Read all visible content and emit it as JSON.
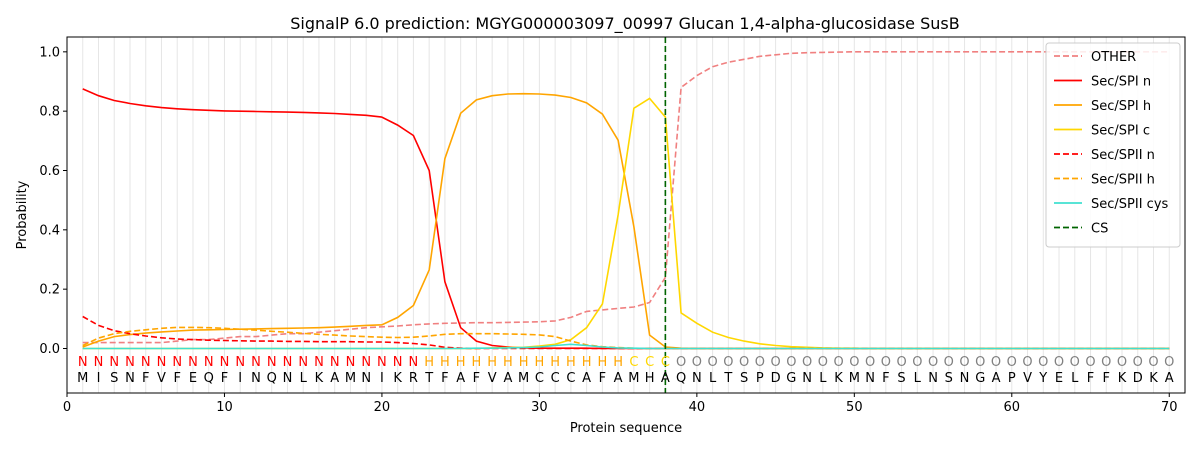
{
  "chart_data": {
    "type": "line",
    "title": "SignalP 6.0 prediction: MGYG000003097_00997 Glucan 1,4-alpha-glucosidase SusB",
    "xlabel": "Protein sequence",
    "ylabel": "Probability",
    "xlim": [
      0,
      71
    ],
    "ylim": [
      -0.15,
      1.05
    ],
    "xticks": [
      0,
      10,
      20,
      30,
      40,
      50,
      60,
      70
    ],
    "yticks": [
      0.0,
      0.2,
      0.4,
      0.6,
      0.8,
      1.0
    ],
    "grid": "vertical lines at each residue",
    "legend_position": "top-right",
    "sequence": [
      "M",
      "I",
      "S",
      "N",
      "F",
      "V",
      "F",
      "E",
      "Q",
      "F",
      "I",
      "N",
      "Q",
      "N",
      "L",
      "K",
      "A",
      "M",
      "N",
      "I",
      "K",
      "R",
      "T",
      "F",
      "A",
      "F",
      "V",
      "A",
      "M",
      "C",
      "C",
      "C",
      "A",
      "F",
      "A",
      "M",
      "H",
      "A",
      "Q",
      "N",
      "L",
      "T",
      "S",
      "P",
      "D",
      "G",
      "N",
      "L",
      "K",
      "M",
      "N",
      "F",
      "S",
      "L",
      "N",
      "S",
      "N",
      "G",
      "A",
      "P",
      "V",
      "Y",
      "E",
      "L",
      "F",
      "F",
      "K",
      "D",
      "K",
      "A"
    ],
    "labels": [
      "N",
      "N",
      "N",
      "N",
      "N",
      "N",
      "N",
      "N",
      "N",
      "N",
      "N",
      "N",
      "N",
      "N",
      "N",
      "N",
      "N",
      "N",
      "N",
      "N",
      "N",
      "N",
      "H",
      "H",
      "H",
      "H",
      "H",
      "H",
      "H",
      "H",
      "H",
      "H",
      "H",
      "H",
      "H",
      "C",
      "C",
      "C",
      "O",
      "O",
      "O",
      "O",
      "O",
      "O",
      "O",
      "O",
      "O",
      "O",
      "O",
      "O",
      "O",
      "O",
      "O",
      "O",
      "O",
      "O",
      "O",
      "O",
      "O",
      "O",
      "O",
      "O",
      "O",
      "O",
      "O",
      "O",
      "O",
      "O",
      "O",
      "O"
    ],
    "label_colors": {
      "N": "#ff0000",
      "H": "#ffa500",
      "C": "#ffd700",
      "O": "#808080"
    },
    "cs_position": 38,
    "series": [
      {
        "name": "OTHER",
        "color": "#f08080",
        "dash": "dashed",
        "values": [
          0.02,
          0.02,
          0.02,
          0.02,
          0.02,
          0.02,
          0.025,
          0.03,
          0.03,
          0.035,
          0.04,
          0.04,
          0.045,
          0.05,
          0.05,
          0.055,
          0.06,
          0.065,
          0.07,
          0.073,
          0.076,
          0.08,
          0.083,
          0.085,
          0.086,
          0.087,
          0.087,
          0.088,
          0.089,
          0.09,
          0.093,
          0.105,
          0.125,
          0.13,
          0.135,
          0.14,
          0.155,
          0.24,
          0.88,
          0.92,
          0.95,
          0.965,
          0.975,
          0.985,
          0.99,
          0.995,
          0.997,
          0.998,
          0.999,
          1.0,
          1.0,
          1.0,
          1.0,
          1.0,
          1.0,
          1.0,
          1.0,
          1.0,
          1.0,
          1.0,
          1.0,
          1.0,
          1.0,
          1.0,
          1.0,
          1.0,
          1.0,
          1.0,
          1.0,
          1.0
        ]
      },
      {
        "name": "Sec/SPI n",
        "color": "#ff0000",
        "dash": "solid",
        "values": [
          0.875,
          0.852,
          0.836,
          0.826,
          0.818,
          0.812,
          0.808,
          0.805,
          0.803,
          0.801,
          0.8,
          0.799,
          0.798,
          0.797,
          0.796,
          0.794,
          0.792,
          0.789,
          0.786,
          0.78,
          0.753,
          0.718,
          0.6,
          0.225,
          0.07,
          0.025,
          0.01,
          0.005,
          0.002,
          0.001,
          0.001,
          0.001,
          0.001,
          0.0,
          0.0,
          0.0,
          0.0,
          0.0,
          0.0,
          0.0,
          0.0,
          0.0,
          0.0,
          0.0,
          0.0,
          0.0,
          0.0,
          0.0,
          0.0,
          0.0,
          0.0,
          0.0,
          0.0,
          0.0,
          0.0,
          0.0,
          0.0,
          0.0,
          0.0,
          0.0,
          0.0,
          0.0,
          0.0,
          0.0,
          0.0,
          0.0,
          0.0,
          0.0,
          0.0,
          0.0
        ]
      },
      {
        "name": "Sec/SPI h",
        "color": "#ffa500",
        "dash": "solid",
        "values": [
          0.005,
          0.025,
          0.04,
          0.047,
          0.052,
          0.056,
          0.059,
          0.062,
          0.063,
          0.064,
          0.065,
          0.066,
          0.067,
          0.068,
          0.069,
          0.07,
          0.072,
          0.075,
          0.078,
          0.08,
          0.105,
          0.145,
          0.265,
          0.64,
          0.793,
          0.838,
          0.852,
          0.858,
          0.859,
          0.858,
          0.854,
          0.846,
          0.828,
          0.79,
          0.702,
          0.41,
          0.045,
          0.005,
          0.001,
          0.0,
          0.0,
          0.0,
          0.0,
          0.0,
          0.0,
          0.0,
          0.0,
          0.0,
          0.0,
          0.0,
          0.0,
          0.0,
          0.0,
          0.0,
          0.0,
          0.0,
          0.0,
          0.0,
          0.0,
          0.0,
          0.0,
          0.0,
          0.0,
          0.0,
          0.0,
          0.0,
          0.0,
          0.0,
          0.0,
          0.0
        ]
      },
      {
        "name": "Sec/SPI c",
        "color": "#ffd700",
        "dash": "solid",
        "values": [
          0.0,
          0.0,
          0.0,
          0.0,
          0.0,
          0.0,
          0.0,
          0.0,
          0.0,
          0.0,
          0.0,
          0.0,
          0.0,
          0.0,
          0.0,
          0.0,
          0.0,
          0.0,
          0.0,
          0.0,
          0.0,
          0.0,
          0.0,
          0.0,
          0.0,
          0.0,
          0.002,
          0.003,
          0.004,
          0.008,
          0.014,
          0.03,
          0.07,
          0.15,
          0.45,
          0.81,
          0.843,
          0.78,
          0.12,
          0.085,
          0.055,
          0.037,
          0.025,
          0.016,
          0.01,
          0.006,
          0.004,
          0.002,
          0.001,
          0.001,
          0.0,
          0.0,
          0.0,
          0.0,
          0.0,
          0.0,
          0.0,
          0.0,
          0.0,
          0.0,
          0.0,
          0.0,
          0.0,
          0.0,
          0.0,
          0.0,
          0.0,
          0.0,
          0.0,
          0.0
        ]
      },
      {
        "name": "Sec/SPII n",
        "color": "#ff0000",
        "dash": "dashed",
        "values": [
          0.108,
          0.078,
          0.06,
          0.05,
          0.042,
          0.036,
          0.032,
          0.03,
          0.028,
          0.027,
          0.026,
          0.025,
          0.025,
          0.024,
          0.024,
          0.023,
          0.023,
          0.023,
          0.022,
          0.022,
          0.02,
          0.017,
          0.012,
          0.004,
          0.001,
          0.0,
          0.0,
          0.0,
          0.0,
          0.0,
          0.0,
          0.0,
          0.0,
          0.0,
          0.0,
          0.0,
          0.0,
          0.0,
          0.0,
          0.0,
          0.0,
          0.0,
          0.0,
          0.0,
          0.0,
          0.0,
          0.0,
          0.0,
          0.0,
          0.0,
          0.0,
          0.0,
          0.0,
          0.0,
          0.0,
          0.0,
          0.0,
          0.0,
          0.0,
          0.0,
          0.0,
          0.0,
          0.0,
          0.0,
          0.0,
          0.0,
          0.0,
          0.0,
          0.0,
          0.0
        ]
      },
      {
        "name": "Sec/SPII h",
        "color": "#ffa500",
        "dash": "dashed",
        "values": [
          0.01,
          0.035,
          0.05,
          0.058,
          0.063,
          0.068,
          0.071,
          0.071,
          0.07,
          0.068,
          0.065,
          0.062,
          0.058,
          0.055,
          0.051,
          0.048,
          0.045,
          0.042,
          0.04,
          0.038,
          0.037,
          0.038,
          0.042,
          0.048,
          0.05,
          0.05,
          0.05,
          0.049,
          0.048,
          0.046,
          0.04,
          0.025,
          0.012,
          0.006,
          0.003,
          0.001,
          0.0,
          0.0,
          0.0,
          0.0,
          0.0,
          0.0,
          0.0,
          0.0,
          0.0,
          0.0,
          0.0,
          0.0,
          0.0,
          0.0,
          0.0,
          0.0,
          0.0,
          0.0,
          0.0,
          0.0,
          0.0,
          0.0,
          0.0,
          0.0,
          0.0,
          0.0,
          0.0,
          0.0,
          0.0,
          0.0,
          0.0,
          0.0,
          0.0,
          0.0
        ]
      },
      {
        "name": "Sec/SPII cys",
        "color": "#40e0d0",
        "dash": "solid",
        "values": [
          0.0,
          0.0,
          0.0,
          0.0,
          0.0,
          0.0,
          0.0,
          0.0,
          0.0,
          0.0,
          0.0,
          0.0,
          0.0,
          0.0,
          0.0,
          0.0,
          0.0,
          0.0,
          0.0,
          0.0,
          0.0,
          0.0,
          0.0,
          0.0,
          0.0,
          0.001,
          0.001,
          0.002,
          0.003,
          0.005,
          0.01,
          0.014,
          0.01,
          0.005,
          0.002,
          0.001,
          0.0,
          0.0,
          0.0,
          0.0,
          0.0,
          0.0,
          0.0,
          0.0,
          0.0,
          0.0,
          0.0,
          0.0,
          0.0,
          0.0,
          0.0,
          0.0,
          0.0,
          0.0,
          0.0,
          0.0,
          0.0,
          0.0,
          0.0,
          0.0,
          0.0,
          0.0,
          0.0,
          0.0,
          0.0,
          0.0,
          0.0,
          0.0,
          0.0,
          0.0
        ]
      }
    ],
    "cs_series": {
      "name": "CS",
      "color": "#006400",
      "dash": "dashed"
    }
  }
}
